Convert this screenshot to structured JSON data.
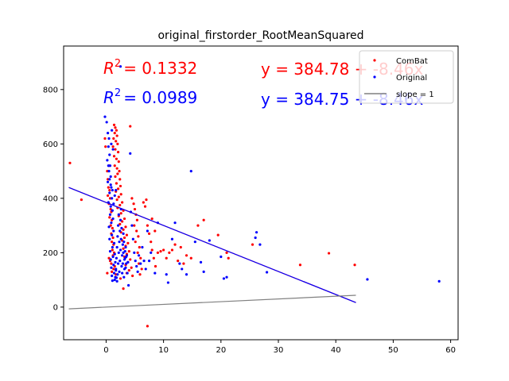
{
  "chart_data": {
    "type": "scatter",
    "title": "original_firstorder_RootMeanSquared",
    "xlabel": "",
    "ylabel": "",
    "xlim": [
      -7.4,
      61.3
    ],
    "ylim": [
      -120,
      960
    ],
    "xticks": [
      0,
      10,
      20,
      30,
      40,
      50,
      60
    ],
    "yticks": [
      0,
      200,
      400,
      600,
      800
    ],
    "grid": false,
    "legend_position": "top-right",
    "legend": [
      {
        "label": "ComBat",
        "marker": "dot",
        "color": "#ff0000"
      },
      {
        "label": "Original",
        "marker": "dot",
        "color": "#0000ff"
      },
      {
        "label": "slope = 1",
        "marker": "line",
        "color": "#808080"
      }
    ],
    "annotations": [
      {
        "r2_symbol": "R",
        "r2_power": "2",
        "r2_value": "= 0.1332",
        "equation": "y = 384.78 + -8.46x",
        "color": "#ff0000"
      },
      {
        "r2_symbol": "R",
        "r2_power": "2",
        "r2_value": "= 0.0989",
        "equation": "y = 384.75 + -8.46x",
        "color": "#0000ff"
      }
    ],
    "lines": [
      {
        "name": "ComBat fit",
        "color": "#ff0000",
        "x": [
          -6.5,
          43.5
        ],
        "y": [
          439.8,
          16.8
        ]
      },
      {
        "name": "Original fit",
        "color": "#0000ff",
        "x": [
          -6.5,
          43.5
        ],
        "y": [
          439.8,
          16.8
        ]
      },
      {
        "name": "slope = 1",
        "color": "#808080",
        "x": [
          -6.5,
          43.5
        ],
        "y": [
          -6.5,
          43.5
        ]
      }
    ],
    "series": [
      {
        "name": "ComBat",
        "color": "#ff0000",
        "points": [
          [
            -6.3,
            530
          ],
          [
            -4.3,
            395
          ],
          [
            -0.2,
            620
          ],
          [
            -0.1,
            590
          ],
          [
            0.2,
            500
          ],
          [
            0.3,
            470
          ],
          [
            0.5,
            520
          ],
          [
            0.4,
            440
          ],
          [
            0.6,
            430
          ],
          [
            0.3,
            410
          ],
          [
            0.7,
            400
          ],
          [
            0.5,
            380
          ],
          [
            0.8,
            360
          ],
          [
            0.9,
            350
          ],
          [
            0.6,
            330
          ],
          [
            1.0,
            320
          ],
          [
            0.8,
            300
          ],
          [
            1.1,
            290
          ],
          [
            0.9,
            270
          ],
          [
            1.2,
            255
          ],
          [
            1.0,
            240
          ],
          [
            1.3,
            230
          ],
          [
            1.1,
            210
          ],
          [
            1.4,
            200
          ],
          [
            1.2,
            190
          ],
          [
            0.5,
            180
          ],
          [
            0.7,
            170
          ],
          [
            0.9,
            160
          ],
          [
            1.5,
            150
          ],
          [
            1.3,
            140
          ],
          [
            1.0,
            130
          ],
          [
            0.2,
            125
          ],
          [
            1.7,
            120
          ],
          [
            1.4,
            670
          ],
          [
            1.6,
            660
          ],
          [
            1.8,
            650
          ],
          [
            1.5,
            640
          ],
          [
            1.9,
            630
          ],
          [
            1.3,
            620
          ],
          [
            1.7,
            610
          ],
          [
            2.0,
            600
          ],
          [
            1.2,
            590
          ],
          [
            1.6,
            580
          ],
          [
            2.1,
            570
          ],
          [
            1.4,
            555
          ],
          [
            1.8,
            545
          ],
          [
            2.2,
            535
          ],
          [
            1.5,
            520
          ],
          [
            1.9,
            510
          ],
          [
            2.3,
            500
          ],
          [
            2.0,
            490
          ],
          [
            1.6,
            480
          ],
          [
            2.4,
            470
          ],
          [
            1.8,
            455
          ],
          [
            2.5,
            445
          ],
          [
            2.1,
            435
          ],
          [
            1.7,
            425
          ],
          [
            2.6,
            415
          ],
          [
            2.2,
            405
          ],
          [
            1.9,
            395
          ],
          [
            2.8,
            385
          ],
          [
            2.4,
            375
          ],
          [
            2.0,
            365
          ],
          [
            3.0,
            355
          ],
          [
            2.6,
            345
          ],
          [
            2.2,
            335
          ],
          [
            3.2,
            325
          ],
          [
            2.8,
            315
          ],
          [
            2.4,
            305
          ],
          [
            3.4,
            295
          ],
          [
            3.0,
            285
          ],
          [
            2.6,
            275
          ],
          [
            3.6,
            265
          ],
          [
            3.2,
            255
          ],
          [
            2.8,
            245
          ],
          [
            3.8,
            235
          ],
          [
            3.4,
            225
          ],
          [
            3.0,
            215
          ],
          [
            4.0,
            205
          ],
          [
            3.6,
            195
          ],
          [
            3.2,
            185
          ],
          [
            4.2,
            175
          ],
          [
            3.8,
            165
          ],
          [
            3.4,
            155
          ],
          [
            4.4,
            145
          ],
          [
            4.0,
            135
          ],
          [
            3.6,
            125
          ],
          [
            4.6,
            115
          ],
          [
            2.5,
            105
          ],
          [
            4.2,
            665
          ],
          [
            4.5,
            400
          ],
          [
            4.8,
            380
          ],
          [
            5.0,
            360
          ],
          [
            5.2,
            340
          ],
          [
            5.4,
            320
          ],
          [
            4.9,
            300
          ],
          [
            5.3,
            280
          ],
          [
            5.6,
            260
          ],
          [
            5.1,
            240
          ],
          [
            5.8,
            220
          ],
          [
            5.5,
            200
          ],
          [
            6.0,
            180
          ],
          [
            5.7,
            160
          ],
          [
            6.2,
            140
          ],
          [
            5.9,
            120
          ],
          [
            6.5,
            385
          ],
          [
            6.8,
            370
          ],
          [
            7.0,
            395
          ],
          [
            7.2,
            300
          ],
          [
            7.5,
            270
          ],
          [
            7.8,
            240
          ],
          [
            8.0,
            210
          ],
          [
            8.3,
            180
          ],
          [
            8.6,
            150
          ],
          [
            8.0,
            325
          ],
          [
            8.5,
            280
          ],
          [
            9.0,
            200
          ],
          [
            9.5,
            205
          ],
          [
            10.0,
            210
          ],
          [
            10.5,
            180
          ],
          [
            11.0,
            200
          ],
          [
            11.5,
            210
          ],
          [
            12.0,
            230
          ],
          [
            12.5,
            170
          ],
          [
            13.0,
            220
          ],
          [
            13.5,
            160
          ],
          [
            14.0,
            190
          ],
          [
            14.8,
            180
          ],
          [
            16.0,
            300
          ],
          [
            17.0,
            320
          ],
          [
            19.5,
            265
          ],
          [
            21.0,
            200
          ],
          [
            21.3,
            180
          ],
          [
            25.5,
            230
          ],
          [
            33.8,
            155
          ],
          [
            38.8,
            198
          ],
          [
            43.3,
            155
          ],
          [
            3.0,
            68
          ],
          [
            7.2,
            -70
          ]
        ]
      },
      {
        "name": "Original",
        "color": "#0000ff",
        "points": [
          [
            -0.2,
            700
          ],
          [
            0.1,
            680
          ],
          [
            0.3,
            640
          ],
          [
            0.5,
            620
          ],
          [
            0.4,
            590
          ],
          [
            0.6,
            560
          ],
          [
            0.2,
            540
          ],
          [
            0.7,
            520
          ],
          [
            0.5,
            500
          ],
          [
            0.8,
            480
          ],
          [
            0.3,
            460
          ],
          [
            0.9,
            440
          ],
          [
            0.6,
            420
          ],
          [
            1.0,
            400
          ],
          [
            0.4,
            385
          ],
          [
            0.8,
            370
          ],
          [
            1.1,
            355
          ],
          [
            0.7,
            340
          ],
          [
            1.2,
            325
          ],
          [
            0.9,
            310
          ],
          [
            0.5,
            295
          ],
          [
            1.3,
            280
          ],
          [
            1.0,
            265
          ],
          [
            0.6,
            250
          ],
          [
            1.4,
            235
          ],
          [
            1.1,
            220
          ],
          [
            0.7,
            205
          ],
          [
            1.5,
            195
          ],
          [
            1.2,
            185
          ],
          [
            0.8,
            175
          ],
          [
            1.6,
            165
          ],
          [
            1.3,
            155
          ],
          [
            0.9,
            145
          ],
          [
            1.7,
            135
          ],
          [
            1.4,
            125
          ],
          [
            1.0,
            115
          ],
          [
            1.8,
            108
          ],
          [
            1.5,
            100
          ],
          [
            1.1,
            97
          ],
          [
            1.9,
            95
          ],
          [
            1.6,
            110
          ],
          [
            2.0,
            120
          ],
          [
            1.7,
            140
          ],
          [
            2.1,
            160
          ],
          [
            1.8,
            180
          ],
          [
            2.2,
            200
          ],
          [
            1.9,
            220
          ],
          [
            2.3,
            240
          ],
          [
            2.0,
            260
          ],
          [
            2.4,
            280
          ],
          [
            2.1,
            300
          ],
          [
            2.5,
            320
          ],
          [
            2.2,
            340
          ],
          [
            2.6,
            360
          ],
          [
            2.3,
            130
          ],
          [
            2.7,
            150
          ],
          [
            2.4,
            170
          ],
          [
            2.8,
            190
          ],
          [
            2.5,
            210
          ],
          [
            2.9,
            230
          ],
          [
            2.6,
            250
          ],
          [
            3.0,
            270
          ],
          [
            2.7,
            290
          ],
          [
            3.1,
            110
          ],
          [
            2.8,
            125
          ],
          [
            3.2,
            140
          ],
          [
            2.9,
            160
          ],
          [
            3.3,
            180
          ],
          [
            3.0,
            200
          ],
          [
            3.4,
            220
          ],
          [
            3.1,
            240
          ],
          [
            3.5,
            160
          ],
          [
            3.2,
            175
          ],
          [
            3.6,
            190
          ],
          [
            3.3,
            205
          ],
          [
            3.7,
            125
          ],
          [
            3.4,
            145
          ],
          [
            3.8,
            165
          ],
          [
            3.5,
            185
          ],
          [
            2.5,
            885
          ],
          [
            3.9,
            80
          ],
          [
            4.2,
            565
          ],
          [
            4.3,
            350
          ],
          [
            4.5,
            300
          ],
          [
            4.7,
            250
          ],
          [
            4.9,
            200
          ],
          [
            5.1,
            170
          ],
          [
            5.3,
            150
          ],
          [
            5.5,
            130
          ],
          [
            5.7,
            190
          ],
          [
            6.0,
            160
          ],
          [
            6.3,
            220
          ],
          [
            6.6,
            170
          ],
          [
            6.9,
            140
          ],
          [
            7.2,
            280
          ],
          [
            7.5,
            170
          ],
          [
            7.8,
            200
          ],
          [
            8.5,
            125
          ],
          [
            9.0,
            310
          ],
          [
            10.5,
            120
          ],
          [
            10.8,
            90
          ],
          [
            11.5,
            250
          ],
          [
            12.0,
            310
          ],
          [
            12.8,
            160
          ],
          [
            13.2,
            140
          ],
          [
            14.0,
            120
          ],
          [
            14.8,
            500
          ],
          [
            15.5,
            240
          ],
          [
            16.5,
            165
          ],
          [
            17.0,
            130
          ],
          [
            18.0,
            245
          ],
          [
            20.0,
            185
          ],
          [
            20.5,
            105
          ],
          [
            21.0,
            110
          ],
          [
            26.0,
            255
          ],
          [
            26.2,
            275
          ],
          [
            26.8,
            230
          ],
          [
            28.0,
            128
          ],
          [
            45.5,
            102
          ],
          [
            58.0,
            95
          ],
          [
            1.3,
            380
          ],
          [
            1.5,
            410
          ],
          [
            1.7,
            430
          ],
          [
            0.9,
            600
          ],
          [
            1.0,
            650
          ],
          [
            1.2,
            580
          ],
          [
            0.4,
            520
          ],
          [
            0.6,
            470
          ],
          [
            0.8,
            450
          ],
          [
            1.1,
            430
          ]
        ]
      }
    ]
  }
}
